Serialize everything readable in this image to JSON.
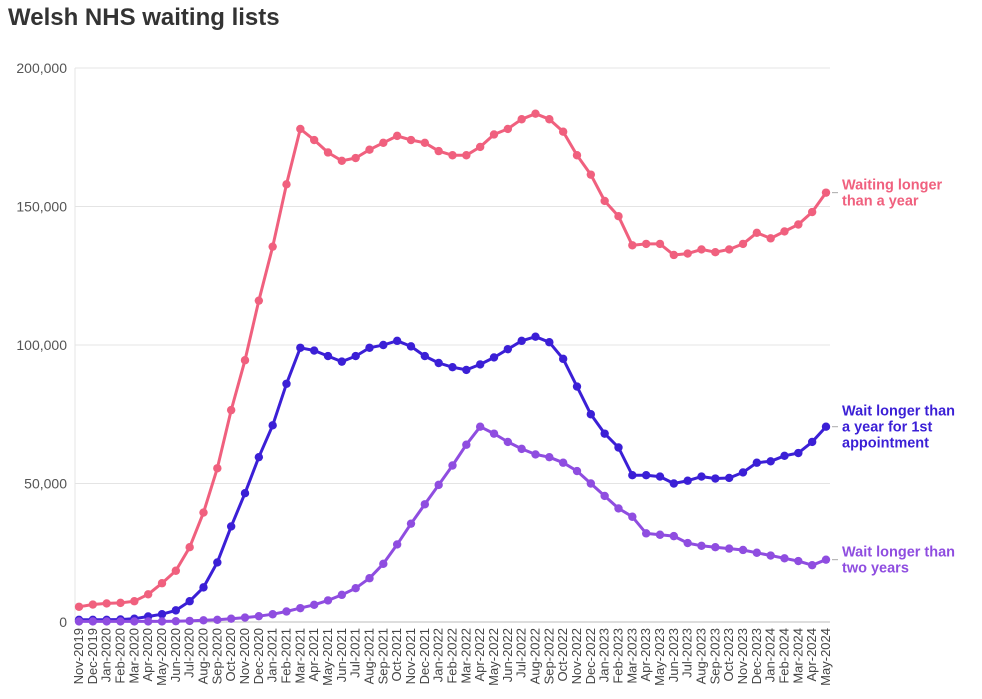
{
  "chart_data": {
    "type": "line",
    "title": "Welsh NHS waiting lists",
    "xlabel": "",
    "ylabel": "",
    "ylim": [
      0,
      200000
    ],
    "yticks": [
      0,
      50000,
      100000,
      150000,
      200000
    ],
    "ytick_labels": [
      "0",
      "50,000",
      "100,000",
      "150,000",
      "200,000"
    ],
    "grid": "horizontal",
    "categories": [
      "Nov-2019",
      "Dec-2019",
      "Jan-2020",
      "Feb-2020",
      "Mar-2020",
      "Apr-2020",
      "May-2020",
      "Jun-2020",
      "Jul-2020",
      "Aug-2020",
      "Sep-2020",
      "Oct-2020",
      "Nov-2020",
      "Dec-2020",
      "Jan-2021",
      "Feb-2021",
      "Mar-2021",
      "Apr-2021",
      "May-2021",
      "Jun-2021",
      "Jul-2021",
      "Aug-2021",
      "Sep-2021",
      "Oct-2021",
      "Nov-2021",
      "Dec-2021",
      "Jan-2022",
      "Feb-2022",
      "Mar-2022",
      "Apr-2022",
      "May-2022",
      "Jun-2022",
      "Jul-2022",
      "Aug-2022",
      "Sep-2022",
      "Oct-2022",
      "Nov-2022",
      "Dec-2022",
      "Jan-2023",
      "Feb-2023",
      "Mar-2023",
      "Apr-2023",
      "May-2023",
      "Jun-2023",
      "Jul-2023",
      "Aug-2023",
      "Sep-2023",
      "Oct-2023",
      "Nov-2023",
      "Dec-2023",
      "Jan-2024",
      "Feb-2024",
      "Mar-2024",
      "Apr-2024",
      "May-2024"
    ],
    "series": [
      {
        "name": "Waiting longer than a year",
        "label_lines": [
          "Waiting longer",
          "than a year"
        ],
        "color": "#f0607e",
        "values": [
          5500,
          6300,
          6700,
          6900,
          7500,
          10000,
          14000,
          18500,
          27000,
          39500,
          55500,
          76500,
          94500,
          116000,
          135500,
          158000,
          178000,
          174000,
          169500,
          166500,
          167500,
          170500,
          173000,
          175500,
          174000,
          173000,
          170000,
          168500,
          168500,
          171500,
          176000,
          178000,
          181500,
          183500,
          181500,
          177000,
          168500,
          161500,
          152000,
          146500,
          136000,
          136500,
          136500,
          132500,
          133000,
          134500,
          133500,
          134500,
          136500,
          140500,
          138500,
          141000,
          143500,
          148000,
          155000
        ]
      },
      {
        "name": "Wait longer than a year for 1st appointment",
        "label_lines": [
          "Wait longer than",
          "a year for 1st",
          "appointment"
        ],
        "color": "#3b1fd6",
        "values": [
          800,
          800,
          800,
          900,
          1200,
          2000,
          2800,
          4200,
          7500,
          12500,
          21500,
          34500,
          46500,
          59500,
          71000,
          86000,
          99000,
          98000,
          96000,
          94000,
          96000,
          99000,
          100000,
          101500,
          99500,
          96000,
          93500,
          92000,
          91000,
          93000,
          95500,
          98500,
          101500,
          103000,
          101000,
          95000,
          85000,
          75000,
          68000,
          63000,
          53000,
          53000,
          52500,
          50000,
          51000,
          52500,
          51800,
          52000,
          54000,
          57500,
          58000,
          60000,
          61000,
          65000,
          70500
        ]
      },
      {
        "name": "Wait longer than two years",
        "label_lines": [
          "Wait longer than",
          "two years"
        ],
        "color": "#8f4de0",
        "values": [
          200,
          200,
          200,
          200,
          200,
          200,
          200,
          300,
          400,
          600,
          800,
          1200,
          1600,
          2100,
          2800,
          3800,
          5000,
          6200,
          7800,
          9800,
          12200,
          15800,
          21000,
          28000,
          35500,
          42500,
          49500,
          56500,
          64000,
          70500,
          68000,
          65000,
          62500,
          60500,
          59500,
          57500,
          54500,
          50000,
          45500,
          41000,
          38000,
          32000,
          31500,
          31000,
          28500,
          27500,
          27000,
          26500,
          26000,
          25000,
          24000,
          23000,
          22000,
          20500,
          22500
        ]
      }
    ]
  }
}
